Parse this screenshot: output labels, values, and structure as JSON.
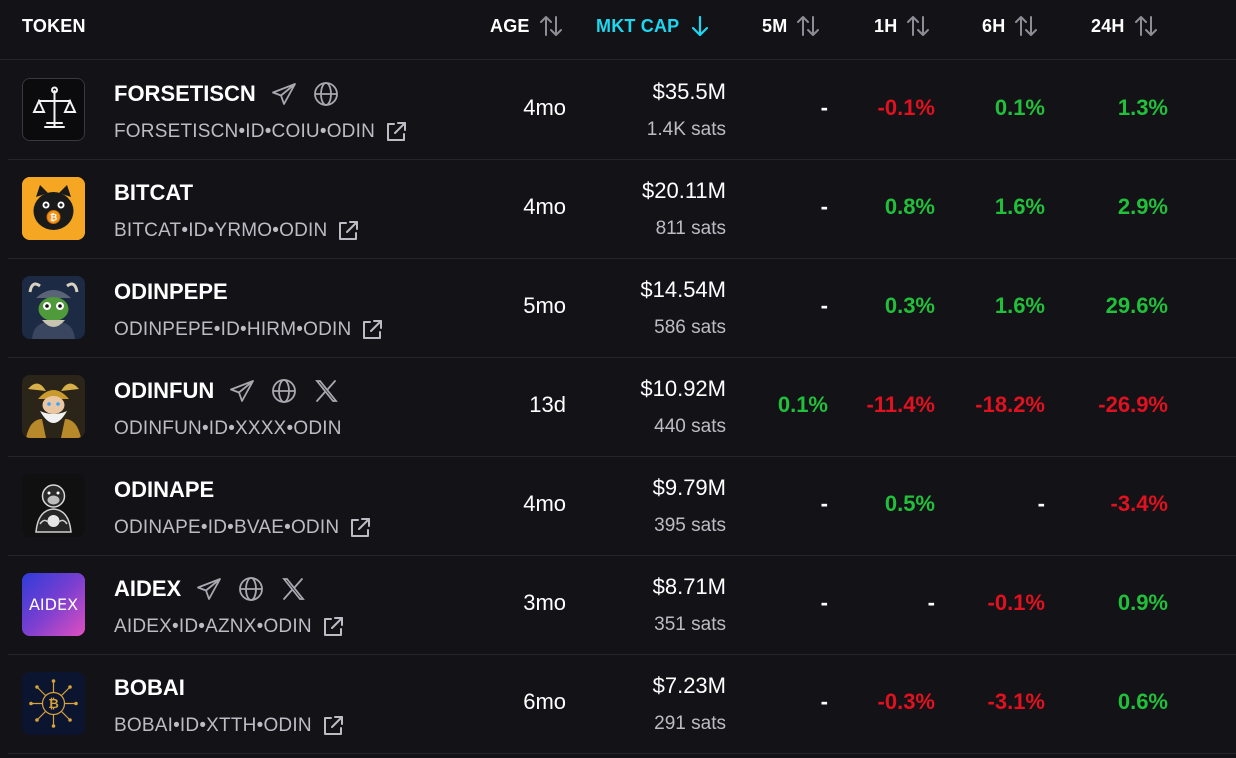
{
  "header": {
    "token": "TOKEN",
    "age": "AGE",
    "mktcap": "MKT CAP",
    "m5": "5M",
    "h1": "1H",
    "h6": "6H",
    "h24": "24H"
  },
  "colors": {
    "background": "#131217",
    "active_sort": "#1bd8f0",
    "positive": "#20c03a",
    "negative": "#e1111f",
    "muted_text": "#bdbcc4"
  },
  "rows": [
    {
      "name": "FORSETISCN",
      "id": "FORSETISCN•ID•COIU•ODIN",
      "age": "4mo",
      "mktcap": "$35.5M",
      "sats": "1.4K sats",
      "m5": "-",
      "h1": "-0.1%",
      "h6": "0.1%",
      "h24": "1.3%",
      "socials": [
        "telegram-icon",
        "globe-icon"
      ],
      "logo": "scales-of-justice-logo"
    },
    {
      "name": "BITCAT",
      "id": "BITCAT•ID•YRMO•ODIN",
      "age": "4mo",
      "mktcap": "$20.11M",
      "sats": "811 sats",
      "m5": "-",
      "h1": "0.8%",
      "h6": "1.6%",
      "h24": "2.9%",
      "socials": [],
      "logo": "black-cat-logo"
    },
    {
      "name": "ODINPEPE",
      "id": "ODINPEPE•ID•HIRM•ODIN",
      "age": "5mo",
      "mktcap": "$14.54M",
      "sats": "586 sats",
      "m5": "-",
      "h1": "0.3%",
      "h6": "1.6%",
      "h24": "29.6%",
      "socials": [],
      "logo": "viking-pepe-logo"
    },
    {
      "name": "ODINFUN",
      "id": "ODINFUN•ID•XXXX•ODIN",
      "age": "13d",
      "mktcap": "$10.92M",
      "sats": "440 sats",
      "m5": "0.1%",
      "h1": "-11.4%",
      "h6": "-18.2%",
      "h24": "-26.9%",
      "socials": [
        "telegram-icon",
        "globe-icon",
        "x-icon"
      ],
      "logo": "odin-god-logo"
    },
    {
      "name": "ODINAPE",
      "id": "ODINAPE•ID•BVAE•ODIN",
      "age": "4mo",
      "mktcap": "$9.79M",
      "sats": "395 sats",
      "m5": "-",
      "h1": "0.5%",
      "h6": "-",
      "h24": "-3.4%",
      "socials": [],
      "logo": "ape-logo"
    },
    {
      "name": "AIDEX",
      "id": "AIDEX•ID•AZNX•ODIN",
      "age": "3mo",
      "mktcap": "$8.71M",
      "sats": "351 sats",
      "m5": "-",
      "h1": "-",
      "h6": "-0.1%",
      "h24": "0.9%",
      "socials": [
        "telegram-icon",
        "globe-icon",
        "x-icon"
      ],
      "logo": "aidex-logo",
      "logo_text": "AIDEX"
    },
    {
      "name": "BOBAI",
      "id": "BOBAI•ID•XTTH•ODIN",
      "age": "6mo",
      "mktcap": "$7.23M",
      "sats": "291 sats",
      "m5": "-",
      "h1": "-0.3%",
      "h6": "-3.1%",
      "h24": "0.6%",
      "socials": [],
      "logo": "bitcoin-circuit-logo"
    }
  ]
}
